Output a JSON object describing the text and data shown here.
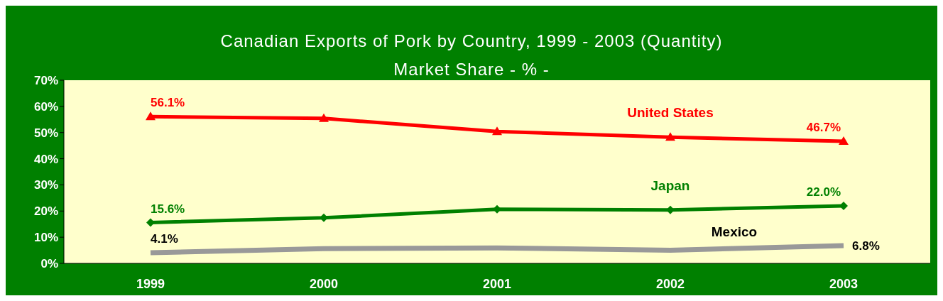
{
  "chart_data": {
    "type": "line",
    "title": "Canadian Exports of Pork by Country, 1999 - 2003 (Quantity)",
    "subtitle": "Market Share - % -",
    "categories": [
      "1999",
      "2000",
      "2001",
      "2002",
      "2003"
    ],
    "series": [
      {
        "name": "United States",
        "color": "#ff0000",
        "values": [
          56.1,
          55.4,
          50.4,
          48.2,
          46.7
        ],
        "marker": "triangle",
        "value_labels": [
          "56.1%",
          null,
          null,
          null,
          "46.7%"
        ]
      },
      {
        "name": "Japan",
        "color": "#008000",
        "values": [
          15.6,
          17.4,
          20.7,
          20.4,
          22.0
        ],
        "marker": "diamond",
        "value_labels": [
          "15.6%",
          null,
          null,
          null,
          "22.0%"
        ]
      },
      {
        "name": "Mexico",
        "color": "#999999",
        "values": [
          4.1,
          5.6,
          5.9,
          5.0,
          6.8
        ],
        "marker": "none",
        "value_labels": [
          "4.1%",
          null,
          null,
          null,
          "6.8%"
        ]
      }
    ],
    "ylim": [
      0,
      70
    ],
    "yticks": [
      {
        "value": 0,
        "label": "0%"
      },
      {
        "value": 10,
        "label": "10%"
      },
      {
        "value": 20,
        "label": "20%"
      },
      {
        "value": 30,
        "label": "30%"
      },
      {
        "value": 40,
        "label": "40%"
      },
      {
        "value": 50,
        "label": "50%"
      },
      {
        "value": 60,
        "label": "60%"
      },
      {
        "value": 70,
        "label": "70%"
      }
    ],
    "grid": false,
    "legend": false,
    "line_style": "solid"
  }
}
